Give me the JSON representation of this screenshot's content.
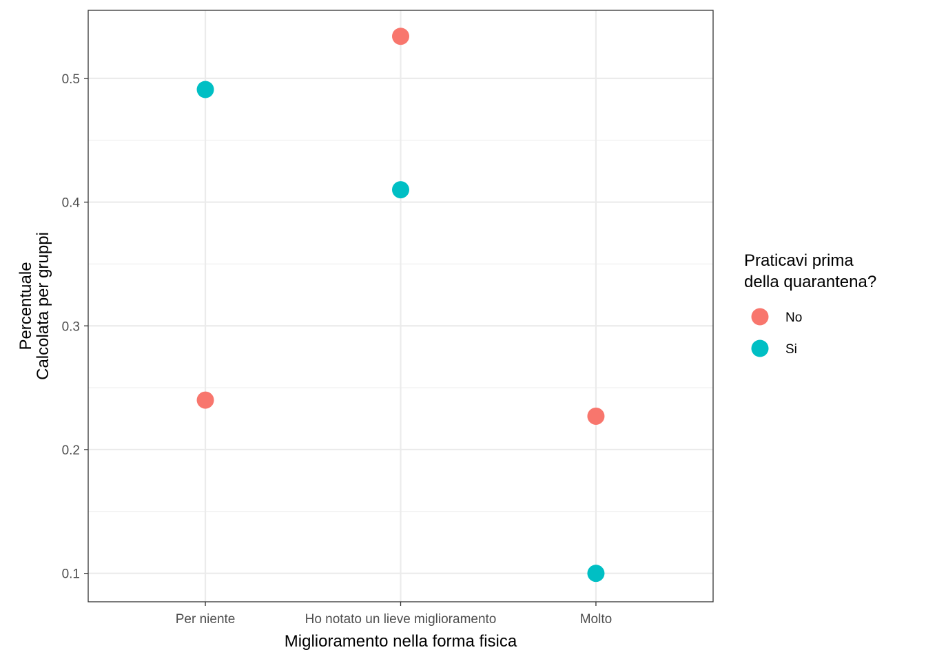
{
  "chart_data": {
    "type": "scatter",
    "categories": [
      "Per niente",
      "Ho notato un lieve miglioramento",
      "Molto"
    ],
    "series": [
      {
        "name": "No",
        "color": "#F8766D",
        "values": [
          0.24,
          0.534,
          0.227
        ]
      },
      {
        "name": "Si",
        "color": "#00BFC4",
        "values": [
          0.491,
          0.41,
          0.1
        ]
      }
    ],
    "xlabel": "Miglioramento nella forma fisica",
    "ylabel_line1": "Percentuale",
    "ylabel_line2": "Calcolata per gruppi",
    "ylim": [
      0.077,
      0.555
    ],
    "yticks": [
      0.1,
      0.2,
      0.3,
      0.4,
      0.5
    ],
    "ytick_labels": [
      "0.1",
      "0.2",
      "0.3",
      "0.4",
      "0.5"
    ],
    "grid": true,
    "legend": {
      "title_line1": "Praticavi prima",
      "title_line2": "della quarantena?",
      "placement": "right"
    }
  }
}
